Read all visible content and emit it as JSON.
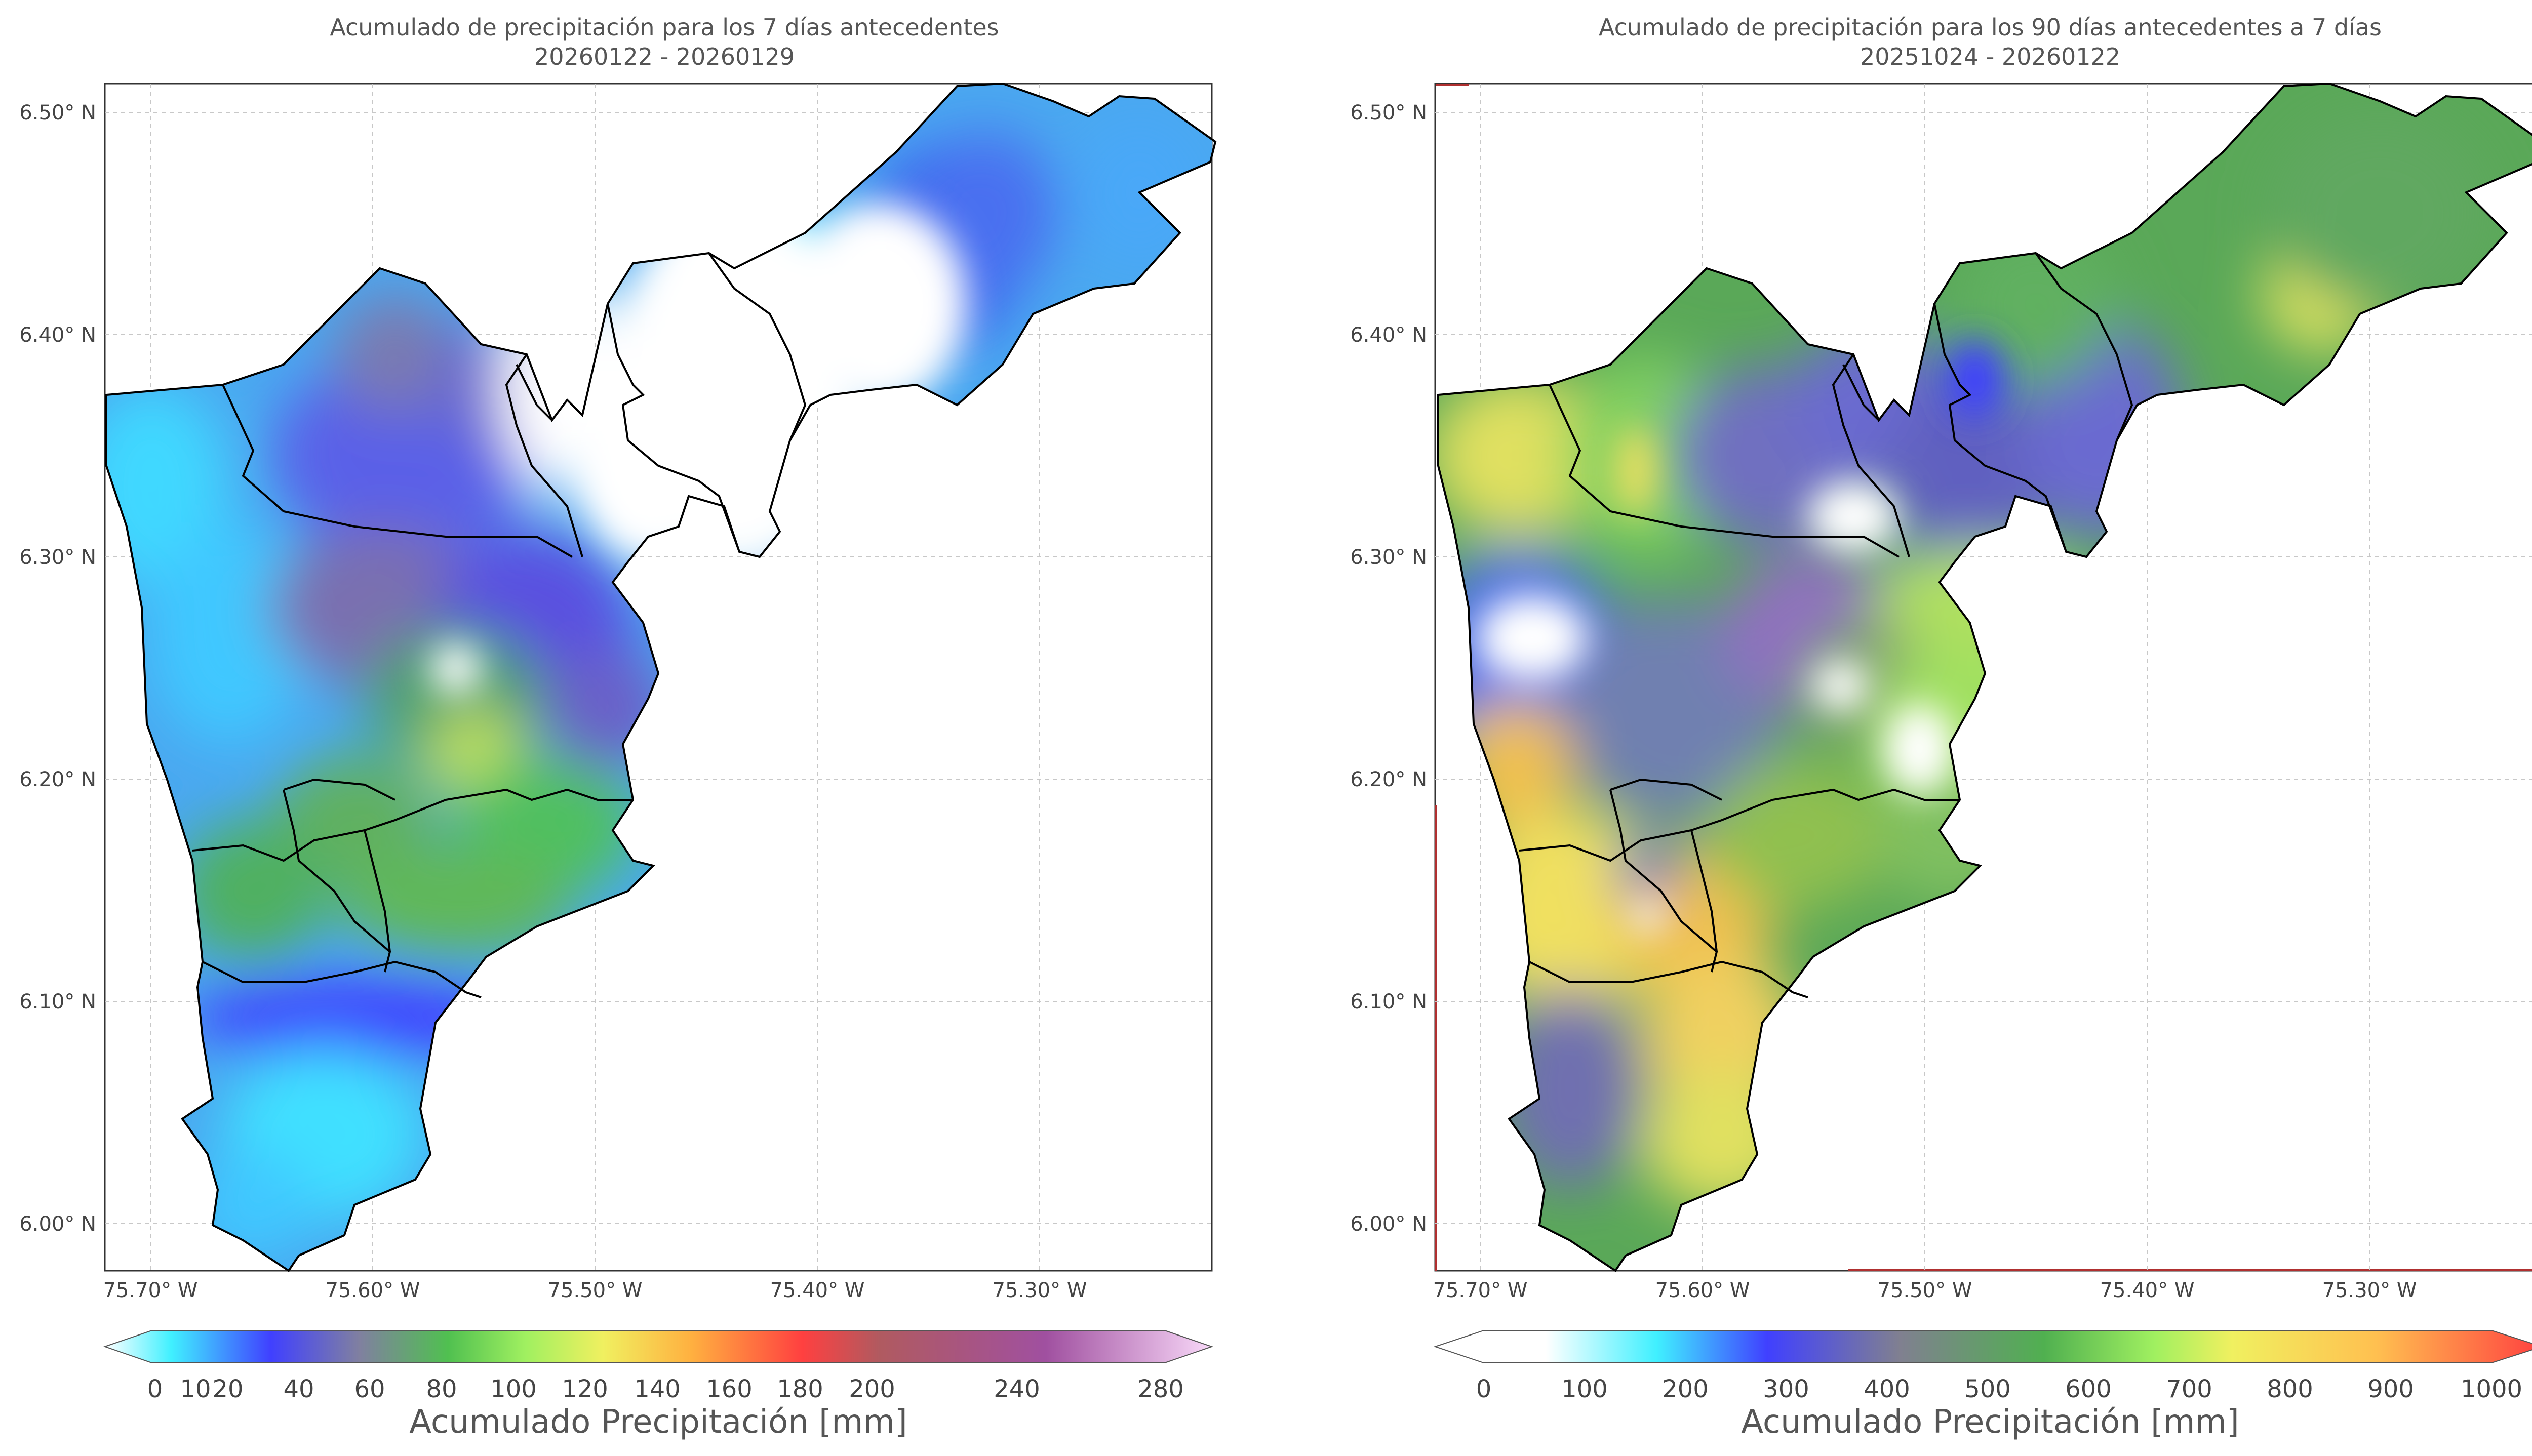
{
  "maps": [
    {
      "title_line1": "Acumulado de precipitación para los 7 días antecedentes",
      "title_line2": "20260122 - 20260129",
      "lat_ticks": [
        "6.50° N",
        "6.40° N",
        "6.30° N",
        "6.20° N",
        "6.10° N",
        "6.00° N"
      ],
      "lon_ticks": [
        "75.70° W",
        "75.60° W",
        "75.50° W",
        "75.40° W",
        "75.30° W"
      ],
      "colorbar_ticks": [
        "0",
        "10",
        "20",
        "40",
        "60",
        "80",
        "100",
        "120",
        "140",
        "160",
        "180",
        "200",
        "240",
        "280"
      ],
      "colorbar_label": "Acumulado Precipitación [mm]"
    },
    {
      "title_line1": "Acumulado de precipitación para los 90 días antecedentes a 7 días",
      "title_line2": "20251024 - 20260122",
      "lat_ticks": [
        "6.50° N",
        "6.40° N",
        "6.30° N",
        "6.20° N",
        "6.10° N",
        "6.00° N"
      ],
      "lon_ticks": [
        "75.70° W",
        "75.60° W",
        "75.50° W",
        "75.40° W",
        "75.30° W"
      ],
      "colorbar_ticks": [
        "0",
        "100",
        "200",
        "300",
        "400",
        "500",
        "600",
        "700",
        "800",
        "900",
        "1000"
      ],
      "colorbar_label": "Acumulado Precipitación [mm]"
    }
  ],
  "colors": {
    "scale7": [
      "#ffffff",
      "#40f0ff",
      "#4040ff",
      "#8080a0",
      "#50c050",
      "#f0f060",
      "#ffb040",
      "#ff4040",
      "#b05080",
      "#a050a0",
      "#f8d8f8"
    ],
    "scale90": [
      "#ffffff",
      "#40f0ff",
      "#4040ff",
      "#808090",
      "#50b050",
      "#a0f060",
      "#f0f060",
      "#ffc050",
      "#ff4040"
    ]
  }
}
